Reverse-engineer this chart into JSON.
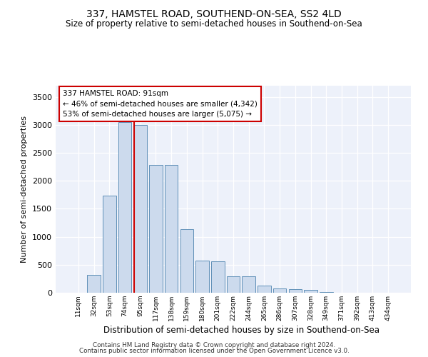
{
  "title": "337, HAMSTEL ROAD, SOUTHEND-ON-SEA, SS2 4LD",
  "subtitle": "Size of property relative to semi-detached houses in Southend-on-Sea",
  "xlabel": "Distribution of semi-detached houses by size in Southend-on-Sea",
  "ylabel": "Number of semi-detached properties",
  "categories": [
    "11sqm",
    "32sqm",
    "53sqm",
    "74sqm",
    "95sqm",
    "117sqm",
    "138sqm",
    "159sqm",
    "180sqm",
    "201sqm",
    "222sqm",
    "244sqm",
    "265sqm",
    "286sqm",
    "307sqm",
    "328sqm",
    "349sqm",
    "371sqm",
    "392sqm",
    "413sqm",
    "434sqm"
  ],
  "values": [
    5,
    315,
    1740,
    3050,
    3000,
    2280,
    2280,
    1130,
    575,
    565,
    290,
    290,
    125,
    75,
    65,
    55,
    12,
    5,
    5,
    5,
    5
  ],
  "bar_color": "#ccdaed",
  "bar_edge_color": "#6090b8",
  "vline_x": 3.62,
  "annotation_text": "337 HAMSTEL ROAD: 91sqm\n← 46% of semi-detached houses are smaller (4,342)\n53% of semi-detached houses are larger (5,075) →",
  "annotation_box_color": "white",
  "annotation_box_edge_color": "#cc0000",
  "vline_color": "#cc0000",
  "ylim": [
    0,
    3700
  ],
  "yticks": [
    0,
    500,
    1000,
    1500,
    2000,
    2500,
    3000,
    3500
  ],
  "bg_color": "#edf1fa",
  "grid_color": "#ffffff",
  "footer1": "Contains HM Land Registry data © Crown copyright and database right 2024.",
  "footer2": "Contains public sector information licensed under the Open Government Licence v3.0."
}
